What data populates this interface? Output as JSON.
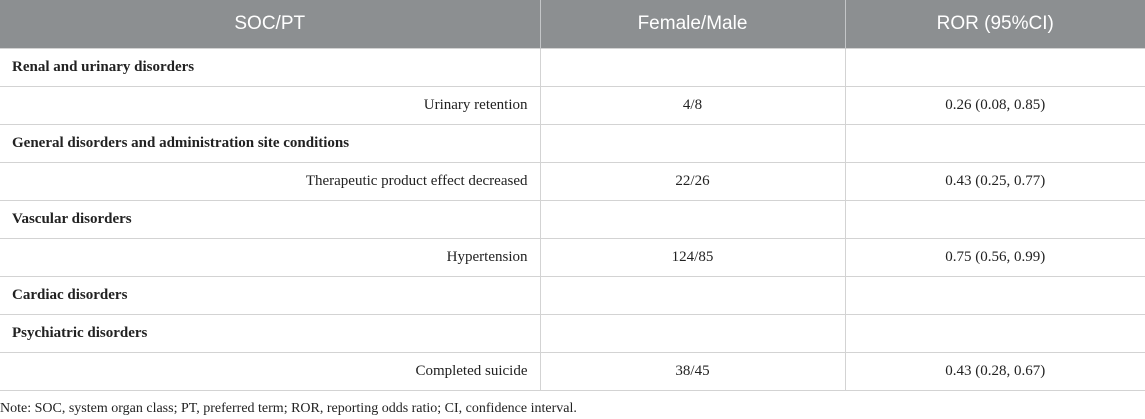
{
  "table": {
    "headers": [
      "SOC/PT",
      "Female/Male",
      "ROR (95%CI)"
    ],
    "rows": [
      {
        "type": "soc",
        "name": "Renal and urinary disorders",
        "ratio": "",
        "ror": ""
      },
      {
        "type": "pt",
        "name": "Urinary retention",
        "ratio": "4/8",
        "ror": "0.26 (0.08, 0.85)"
      },
      {
        "type": "soc",
        "name": "General disorders and administration site conditions",
        "ratio": "",
        "ror": ""
      },
      {
        "type": "pt",
        "name": "Therapeutic product effect decreased",
        "ratio": "22/26",
        "ror": "0.43 (0.25, 0.77)"
      },
      {
        "type": "soc",
        "name": "Vascular disorders",
        "ratio": "",
        "ror": ""
      },
      {
        "type": "pt",
        "name": "Hypertension",
        "ratio": "124/85",
        "ror": "0.75 (0.56, 0.99)"
      },
      {
        "type": "soc",
        "name": "Cardiac disorders",
        "ratio": "",
        "ror": ""
      },
      {
        "type": "soc",
        "name": "Psychiatric disorders",
        "ratio": "",
        "ror": ""
      },
      {
        "type": "pt",
        "name": "Completed suicide",
        "ratio": "38/45",
        "ror": "0.43 (0.28, 0.67)"
      }
    ]
  },
  "note": "Note: SOC, system organ class; PT, preferred term; ROR, reporting odds ratio; CI, confidence interval.",
  "colors": {
    "header_bg": "#8c8f91",
    "header_text": "#ffffff",
    "grid": "#d3d3d3"
  }
}
